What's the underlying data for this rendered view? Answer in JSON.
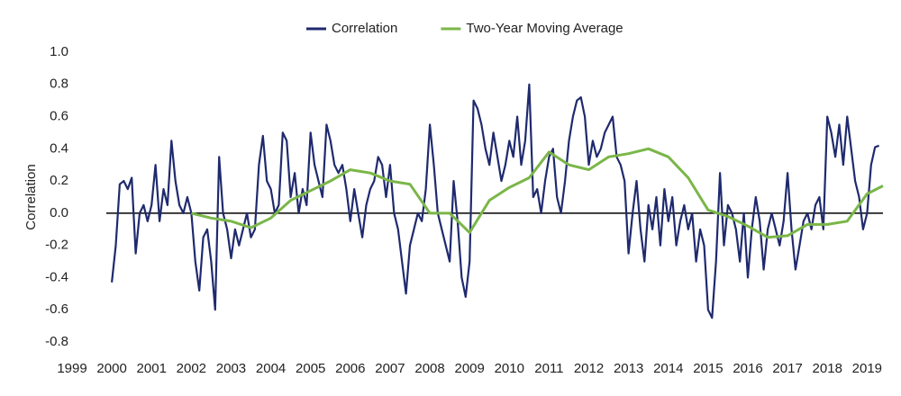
{
  "chart_data": {
    "type": "line",
    "y_label": "Correlation",
    "legend": "top",
    "xlim": [
      1999,
      2019.4
    ],
    "xticks": [
      1999,
      2000,
      2001,
      2002,
      2003,
      2004,
      2005,
      2006,
      2007,
      2008,
      2009,
      2010,
      2011,
      2012,
      2013,
      2014,
      2015,
      2016,
      2017,
      2018,
      2019
    ],
    "ylim": [
      -0.8,
      1.0
    ],
    "yticks": [
      {
        "value": 1,
        "label": "1.0"
      },
      0.8,
      0.6,
      0.4,
      0.2,
      {
        "value": 0,
        "label": "0.0"
      },
      -0.2,
      -0.4,
      -0.6,
      -0.8
    ],
    "series": [
      {
        "name": "Correlation",
        "color": "#1f2a6e",
        "x": [
          2000,
          2000.1,
          2000.2,
          2000.3,
          2000.4,
          2000.5,
          2000.6,
          2000.7,
          2000.8,
          2000.9,
          2001,
          2001.1,
          2001.2,
          2001.3,
          2001.4,
          2001.5,
          2001.6,
          2001.7,
          2001.8,
          2001.9,
          2002,
          2002.1,
          2002.2,
          2002.3,
          2002.4,
          2002.5,
          2002.6,
          2002.7,
          2002.8,
          2002.9,
          2003,
          2003.1,
          2003.2,
          2003.3,
          2003.4,
          2003.5,
          2003.6,
          2003.7,
          2003.8,
          2003.9,
          2004,
          2004.1,
          2004.2,
          2004.3,
          2004.4,
          2004.5,
          2004.6,
          2004.7,
          2004.8,
          2004.9,
          2005,
          2005.1,
          2005.2,
          2005.3,
          2005.4,
          2005.5,
          2005.6,
          2005.7,
          2005.8,
          2005.9,
          2006,
          2006.1,
          2006.2,
          2006.3,
          2006.4,
          2006.5,
          2006.6,
          2006.7,
          2006.8,
          2006.9,
          2007,
          2007.1,
          2007.2,
          2007.3,
          2007.4,
          2007.5,
          2007.6,
          2007.7,
          2007.8,
          2007.9,
          2008,
          2008.1,
          2008.2,
          2008.3,
          2008.4,
          2008.5,
          2008.6,
          2008.7,
          2008.8,
          2008.9,
          2009,
          2009.1,
          2009.2,
          2009.3,
          2009.4,
          2009.5,
          2009.6,
          2009.7,
          2009.8,
          2009.9,
          2010,
          2010.1,
          2010.2,
          2010.3,
          2010.4,
          2010.5,
          2010.6,
          2010.7,
          2010.8,
          2010.9,
          2011,
          2011.1,
          2011.2,
          2011.3,
          2011.4,
          2011.5,
          2011.6,
          2011.7,
          2011.8,
          2011.9,
          2012,
          2012.1,
          2012.2,
          2012.3,
          2012.4,
          2012.5,
          2012.6,
          2012.7,
          2012.8,
          2012.9,
          2013,
          2013.1,
          2013.2,
          2013.3,
          2013.4,
          2013.5,
          2013.6,
          2013.7,
          2013.8,
          2013.9,
          2014,
          2014.1,
          2014.2,
          2014.3,
          2014.4,
          2014.5,
          2014.6,
          2014.7,
          2014.8,
          2014.9,
          2015,
          2015.1,
          2015.2,
          2015.3,
          2015.4,
          2015.5,
          2015.6,
          2015.7,
          2015.8,
          2015.9,
          2016,
          2016.1,
          2016.2,
          2016.3,
          2016.4,
          2016.5,
          2016.6,
          2016.7,
          2016.8,
          2016.9,
          2017,
          2017.1,
          2017.2,
          2017.3,
          2017.4,
          2017.5,
          2017.6,
          2017.7,
          2017.8,
          2017.9,
          2018,
          2018.1,
          2018.2,
          2018.3,
          2018.4,
          2018.5,
          2018.6,
          2018.7,
          2018.8,
          2018.9,
          2019,
          2019.1,
          2019.2,
          2019.3
        ],
        "values": [
          -0.43,
          -0.2,
          0.18,
          0.2,
          0.15,
          0.22,
          -0.25,
          0.0,
          0.05,
          -0.05,
          0.05,
          0.3,
          -0.05,
          0.15,
          0.05,
          0.45,
          0.2,
          0.05,
          0.0,
          0.1,
          0.0,
          -0.3,
          -0.48,
          -0.15,
          -0.1,
          -0.3,
          -0.6,
          0.35,
          0.0,
          -0.1,
          -0.28,
          -0.1,
          -0.2,
          -0.1,
          0.0,
          -0.15,
          -0.1,
          0.3,
          0.48,
          0.2,
          0.15,
          0.0,
          0.05,
          0.5,
          0.45,
          0.1,
          0.25,
          0.0,
          0.15,
          0.05,
          0.5,
          0.3,
          0.2,
          0.1,
          0.55,
          0.45,
          0.3,
          0.25,
          0.3,
          0.15,
          -0.05,
          0.15,
          0.0,
          -0.15,
          0.05,
          0.15,
          0.2,
          0.35,
          0.3,
          0.1,
          0.3,
          0.0,
          -0.1,
          -0.3,
          -0.5,
          -0.2,
          -0.1,
          0.0,
          -0.05,
          0.15,
          0.55,
          0.3,
          0.0,
          -0.1,
          -0.2,
          -0.3,
          0.2,
          -0.05,
          -0.4,
          -0.52,
          -0.3,
          0.7,
          0.65,
          0.55,
          0.4,
          0.3,
          0.5,
          0.35,
          0.2,
          0.3,
          0.45,
          0.35,
          0.6,
          0.3,
          0.45,
          0.8,
          0.1,
          0.15,
          0.0,
          0.2,
          0.35,
          0.4,
          0.1,
          0.0,
          0.2,
          0.45,
          0.6,
          0.7,
          0.72,
          0.6,
          0.3,
          0.45,
          0.35,
          0.4,
          0.5,
          0.55,
          0.6,
          0.35,
          0.3,
          0.2,
          -0.25,
          0.0,
          0.2,
          -0.1,
          -0.3,
          0.05,
          -0.1,
          0.1,
          -0.2,
          0.15,
          -0.05,
          0.1,
          -0.2,
          -0.05,
          0.05,
          -0.1,
          0.0,
          -0.3,
          -0.1,
          -0.2,
          -0.6,
          -0.65,
          -0.3,
          0.25,
          -0.2,
          0.05,
          0.0,
          -0.1,
          -0.3,
          0.0,
          -0.4,
          -0.1,
          0.1,
          -0.05,
          -0.35,
          -0.1,
          0.0,
          -0.1,
          -0.2,
          -0.05,
          0.25,
          -0.1,
          -0.35,
          -0.2,
          -0.05,
          0.0,
          -0.1,
          0.05,
          0.1,
          -0.1,
          0.6,
          0.5,
          0.35,
          0.55,
          0.3,
          0.6,
          0.4,
          0.2,
          0.1,
          -0.1,
          0.0,
          0.3,
          0.41,
          0.42
        ]
      },
      {
        "name": "Two-Year Moving Average",
        "color": "#7ab648",
        "x": [
          2002,
          2002.5,
          2003,
          2003.5,
          2004,
          2004.5,
          2005,
          2005.5,
          2006,
          2006.5,
          2007,
          2007.5,
          2008,
          2008.5,
          2009,
          2009.5,
          2010,
          2010.5,
          2011,
          2011.5,
          2012,
          2012.5,
          2013,
          2013.5,
          2014,
          2014.5,
          2015,
          2015.5,
          2016,
          2016.5,
          2017,
          2017.5,
          2018,
          2018.5,
          2019,
          2019.4
        ],
        "values": [
          0.0,
          -0.03,
          -0.05,
          -0.09,
          -0.03,
          0.08,
          0.14,
          0.2,
          0.27,
          0.25,
          0.2,
          0.18,
          0.0,
          0.0,
          -0.12,
          0.08,
          0.16,
          0.22,
          0.38,
          0.3,
          0.27,
          0.35,
          0.37,
          0.4,
          0.35,
          0.22,
          0.02,
          -0.02,
          -0.08,
          -0.15,
          -0.14,
          -0.07,
          -0.07,
          -0.05,
          0.12,
          0.17
        ]
      }
    ]
  }
}
